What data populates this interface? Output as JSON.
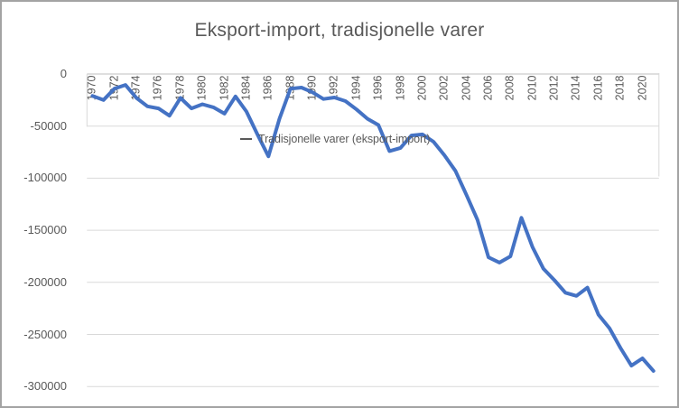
{
  "chart_data": {
    "type": "line",
    "title": "Eksport-import, tradisjonelle varer",
    "legend_label": "Tradisjonelle varer (eksport-import)",
    "legend_position": "center-overlay",
    "grid": true,
    "x": [
      1970,
      1971,
      1972,
      1973,
      1974,
      1975,
      1976,
      1977,
      1978,
      1979,
      1980,
      1981,
      1982,
      1983,
      1984,
      1985,
      1986,
      1987,
      1988,
      1989,
      1990,
      1991,
      1992,
      1993,
      1994,
      1995,
      1996,
      1997,
      1998,
      1999,
      2000,
      2001,
      2002,
      2003,
      2004,
      2005,
      2006,
      2007,
      2008,
      2009,
      2010,
      2011,
      2012,
      2013,
      2014,
      2015,
      2016,
      2017,
      2018,
      2019,
      2020,
      2021
    ],
    "series": [
      {
        "name": "Tradisjonelle varer (eksport-import)",
        "values": [
          -21000,
          -25000,
          -14000,
          -10500,
          -23000,
          -31000,
          -33000,
          -40000,
          -23000,
          -33000,
          -29000,
          -32000,
          -38000,
          -21500,
          -36000,
          -58000,
          -79000,
          -43000,
          -14000,
          -13000,
          -17500,
          -24000,
          -22500,
          -26000,
          -34000,
          -43000,
          -49000,
          -74000,
          -71000,
          -59000,
          -58000,
          -65000,
          -78000,
          -93000,
          -116000,
          -140000,
          -176000,
          -181000,
          -175000,
          -138000,
          -166000,
          -187000,
          -198000,
          -210000,
          -213000,
          -205000,
          -231000,
          -244000,
          -263000,
          -280000,
          -273000,
          -285000
        ]
      }
    ],
    "ylim": [
      -300000,
      0
    ],
    "ytick_interval": 50000,
    "ytick_labels": [
      "0",
      "-50000",
      "-100000",
      "-150000",
      "-200000",
      "-250000",
      "-300000"
    ],
    "xtick_labels": [
      "1970",
      "1972",
      "1974",
      "1976",
      "1978",
      "1980",
      "1982",
      "1984",
      "1986",
      "1988",
      "1990",
      "1992",
      "1994",
      "1996",
      "1998",
      "2000",
      "2002",
      "2004",
      "2006",
      "2008",
      "2010",
      "2012",
      "2014",
      "2016",
      "2018",
      "2020"
    ],
    "xtick_every": 2
  },
  "colors": {
    "line": "#4472C4",
    "text": "#595959",
    "gridline": "#D9D9D9",
    "axis_line": "#BFBFBF",
    "plot_border": "#D9D9D9",
    "legend_marker": "#595959",
    "frame_border": "#A3A3A3",
    "background": "#FFFFFF"
  }
}
